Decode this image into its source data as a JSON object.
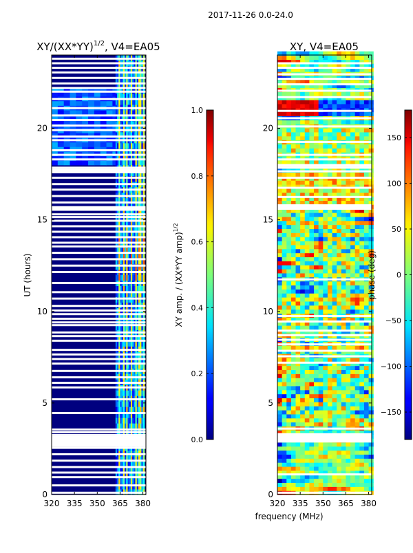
{
  "page": {
    "suptitle": "2017-11-26 0.0-24.0",
    "shared_xlabel": "frequency (MHz)"
  },
  "chart_data": [
    {
      "type": "heatmap",
      "title_base": "XY/(XX*YY)",
      "title_exponent": "1/2",
      "title_suffix": ", V4=EA05",
      "title": "XY/(XX*YY)^1/2, V4=EA05",
      "xlabel": "frequency (MHz)",
      "ylabel": "UT (hours)",
      "xlim": [
        320,
        382
      ],
      "ylim": [
        0,
        24
      ],
      "xticks": [
        320,
        335,
        350,
        365,
        380
      ],
      "yticks": [
        0,
        5,
        10,
        15,
        20
      ],
      "colorbar": {
        "label_base": "XY amp. / (XX*YY amp)",
        "label_exponent": "1/2",
        "label": "XY amp. / (XX*YY amp)^1/2",
        "range": [
          0.0,
          1.0
        ],
        "ticks": [
          0.0,
          0.2,
          0.4,
          0.6,
          0.8,
          1.0
        ],
        "tick_labels": [
          "0.0",
          "0.2",
          "0.4",
          "0.6",
          "0.8",
          "1.0"
        ],
        "colormap": "jet"
      },
      "band_columns_mhz": [
        364,
        367,
        369,
        372,
        375,
        377.5,
        380
      ],
      "flagged_hours": [
        0.1,
        0.5,
        0.95,
        1.2,
        1.5,
        1.85,
        2.2,
        2.55,
        2.85,
        3.25,
        3.4,
        3.55,
        4.45,
        5.2,
        5.85,
        6.1,
        6.4,
        6.75,
        7.15,
        7.4,
        7.65,
        7.9,
        8.4,
        8.65,
        8.85,
        9.25,
        9.4,
        9.6,
        9.85,
        10.05,
        10.3,
        10.7,
        11.05,
        11.55,
        12.15,
        12.5,
        12.85,
        13.2,
        13.55,
        13.75,
        14.05,
        14.35,
        14.65,
        14.95,
        15.15,
        15.3,
        15.55,
        15.95,
        16.3,
        16.65,
        16.95,
        17.3,
        17.6,
        17.85,
        18.3,
        18.55,
        18.8,
        19.35,
        19.55,
        19.9,
        20.15,
        20.45,
        20.7,
        21.1,
        21.6,
        22.0,
        22.2,
        22.45,
        22.75,
        23.05,
        23.3,
        23.55,
        23.8
      ]
    },
    {
      "type": "heatmap",
      "title": "XY, V4=EA05",
      "xlabel": "frequency (MHz)",
      "ylabel": "",
      "xlim": [
        320,
        382
      ],
      "ylim": [
        0,
        24
      ],
      "xticks": [
        320,
        335,
        350,
        365,
        380
      ],
      "yticks": [
        0,
        5,
        10,
        15,
        20
      ],
      "colorbar": {
        "label": "phase (deg)",
        "range": [
          -180,
          180
        ],
        "ticks": [
          -150,
          -100,
          -50,
          0,
          50,
          100,
          150
        ],
        "tick_labels": [
          "−150",
          "−100",
          "−50",
          "0",
          "50",
          "100",
          "150"
        ],
        "colormap": "jet"
      },
      "flagged_hours": [
        0.1,
        1.1,
        2.9,
        3.6,
        7.2,
        7.55,
        7.85,
        8.2,
        8.45,
        8.7,
        8.95,
        9.45,
        9.75,
        11.75,
        15.7,
        16.25,
        16.75,
        17.3,
        17.65,
        17.85,
        18.3,
        18.55,
        19.25,
        20.1,
        20.55,
        20.95,
        21.7,
        22.05,
        22.4,
        22.7,
        22.95,
        23.3,
        23.55
      ]
    }
  ]
}
